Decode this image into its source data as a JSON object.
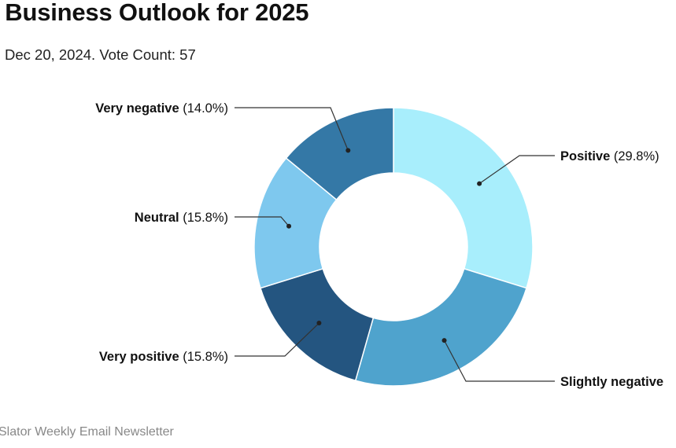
{
  "title": "r Business Outlook for 2025",
  "subtitle": "Dec 20, 2024. Vote Count: 57",
  "source": "Slator Weekly Email Newsletter",
  "chart_data": {
    "type": "pie",
    "donut": true,
    "slices": [
      {
        "label": "Positive",
        "value": 29.8,
        "display": "(29.8%)",
        "color": "#a8eefc"
      },
      {
        "label": "Slightly negative",
        "value": 24.6,
        "display": "",
        "color": "#4fa3cd"
      },
      {
        "label": "Very positive",
        "value": 15.8,
        "display": "(15.8%)",
        "color": "#245580"
      },
      {
        "label": "Neutral",
        "value": 15.8,
        "display": "(15.8%)",
        "color": "#7ec8ee"
      },
      {
        "label": "Very negative",
        "value": 14.0,
        "display": "(14.0%)",
        "color": "#3478a6"
      }
    ],
    "vote_count": 57,
    "legend": "none",
    "labels": "callouts"
  }
}
